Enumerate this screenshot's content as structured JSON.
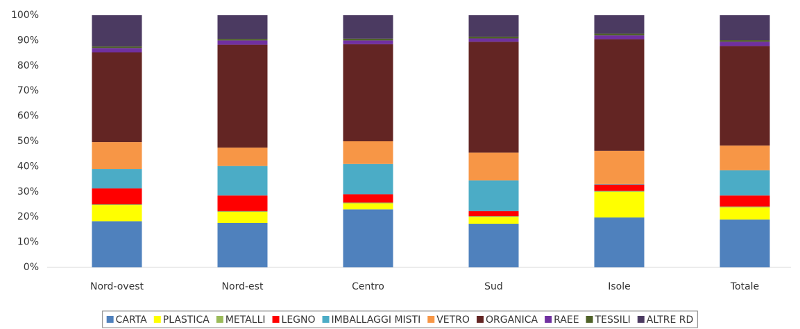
{
  "chart_data": {
    "type": "stacked_bar",
    "categories": [
      "Nord-ovest",
      "Nord-est",
      "Centro",
      "Sud",
      "Isole",
      "Totale"
    ],
    "series": [
      {
        "name": "CARTA",
        "color": "#4f81bd",
        "values": [
          18.3,
          17.6,
          23,
          17.3,
          19.8,
          19
        ]
      },
      {
        "name": "PLASTICA",
        "color": "#ffff00",
        "values": [
          6.4,
          4.4,
          2.4,
          2.7,
          10.2,
          4.8
        ]
      },
      {
        "name": "METALLI",
        "color": "#9bbb59",
        "values": [
          0.3,
          0.3,
          0.3,
          0.3,
          0.3,
          0.3
        ]
      },
      {
        "name": "LEGNO",
        "color": "#ff0000",
        "values": [
          6.3,
          6.2,
          3.3,
          2,
          2.5,
          4.4
        ]
      },
      {
        "name": "IMBALLAGGI MISTI",
        "color": "#4bacc6",
        "values": [
          7.7,
          11.7,
          12,
          12.2,
          0.2,
          10
        ]
      },
      {
        "name": "VETRO",
        "color": "#f79646",
        "values": [
          10.7,
          7.3,
          9,
          11,
          13.2,
          9.8
        ]
      },
      {
        "name": "ORGANICA",
        "color": "#632523",
        "values": [
          35.6,
          40.8,
          38.5,
          44,
          44.3,
          39.5
        ]
      },
      {
        "name": "RAEE",
        "color": "#7030a0",
        "values": [
          1.7,
          1.7,
          1.5,
          1.3,
          1.5,
          1.7
        ]
      },
      {
        "name": "TESSILI",
        "color": "#4f6228",
        "values": [
          0.6,
          0.6,
          0.7,
          0.7,
          0.7,
          0.6
        ]
      },
      {
        "name": "ALTRE RD",
        "color": "#4b3a61",
        "values": [
          12.4,
          9.4,
          9.3,
          8.5,
          7.3,
          9.9
        ]
      }
    ],
    "ylim": [
      0,
      100
    ],
    "yticks": [
      {
        "value": 0,
        "label": "0%"
      },
      {
        "value": 10,
        "label": "10%"
      },
      {
        "value": 20,
        "label": "20%"
      },
      {
        "value": 30,
        "label": "30%"
      },
      {
        "value": 40,
        "label": "40%"
      },
      {
        "value": 50,
        "label": "50%"
      },
      {
        "value": 60,
        "label": "60%"
      },
      {
        "value": 70,
        "label": "70%"
      },
      {
        "value": 80,
        "label": "80%"
      },
      {
        "value": 90,
        "label": "90%"
      },
      {
        "value": 100,
        "label": "100%"
      }
    ],
    "grid": false,
    "legend": "bottom"
  }
}
